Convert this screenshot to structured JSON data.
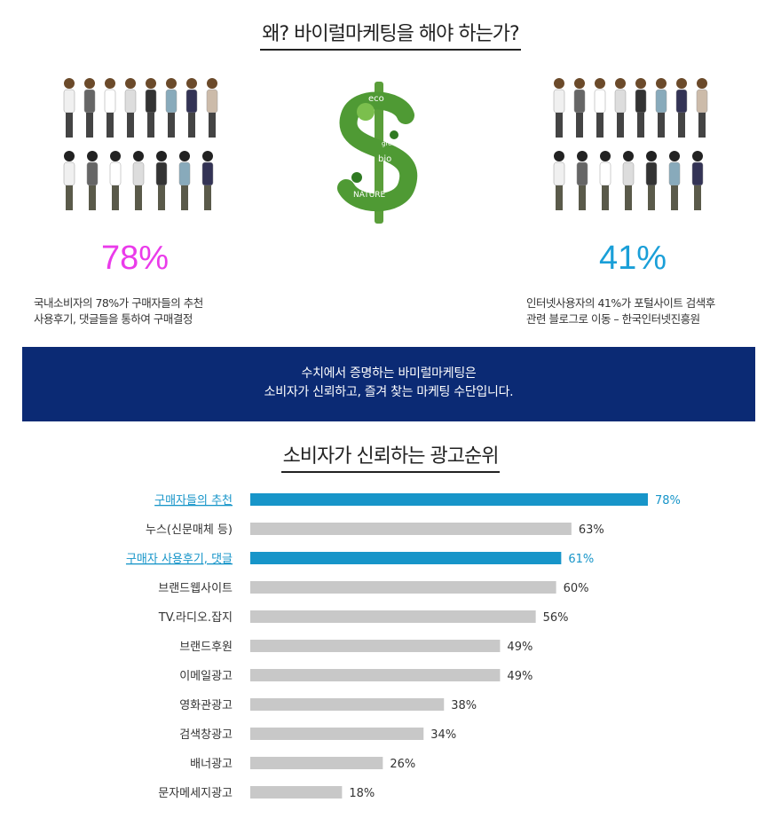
{
  "section1": {
    "title": "왜? 바이럴마케팅을 해야 하는가?",
    "left": {
      "percent": "78%",
      "percent_color": "#ea3bea",
      "desc_line1": "국내소비자의 78%가 구매자들의 추천",
      "desc_line2": "사용후기, 댓글들을 통하여 구매결정"
    },
    "right": {
      "percent": "41%",
      "percent_color": "#1a9fd8",
      "desc_line1": "인터넷사용자의 41%가 포털사이트 검색후",
      "desc_line2": "관련 블로그로 이동 – 한국인터넷진흥원"
    },
    "dollar_words": [
      "eco",
      "green",
      "bio",
      "NATURE"
    ]
  },
  "banner": {
    "line1": "수치에서 증명하는 바미럴마케팅은",
    "line2": "소비자가 신뢰하고,  즐겨 찾는  마케팅 수단입니다."
  },
  "section2": {
    "title": "소비자가 신뢰하는 광고순위"
  },
  "chart_data": {
    "type": "bar",
    "orientation": "horizontal",
    "title": "소비자가 신뢰하는 광고순위",
    "categories": [
      "구매자들의 추천",
      "누스(신문매체 등)",
      "구매자 사용후기, 댓글",
      "브랜드웹사이트",
      "TV.라디오.잡지",
      "브랜드후원",
      "이메일광고",
      "영화관광고",
      "검색창광고",
      "배너광고",
      "문자메세지광고"
    ],
    "values": [
      78,
      63,
      61,
      60,
      56,
      49,
      49,
      38,
      34,
      26,
      18
    ],
    "value_labels": [
      "78%",
      "63%",
      "61%",
      "60%",
      "56%",
      "49%",
      "49%",
      "38%",
      "34%",
      "26%",
      "18%"
    ],
    "highlighted": [
      true,
      false,
      true,
      false,
      false,
      false,
      false,
      false,
      false,
      false,
      false
    ],
    "colors": {
      "highlight": "#1795c9",
      "normal": "#c8c8c8",
      "highlight_text": "#1795c9",
      "normal_text": "#333333"
    },
    "xlim": [
      0,
      78
    ],
    "grid": false
  }
}
